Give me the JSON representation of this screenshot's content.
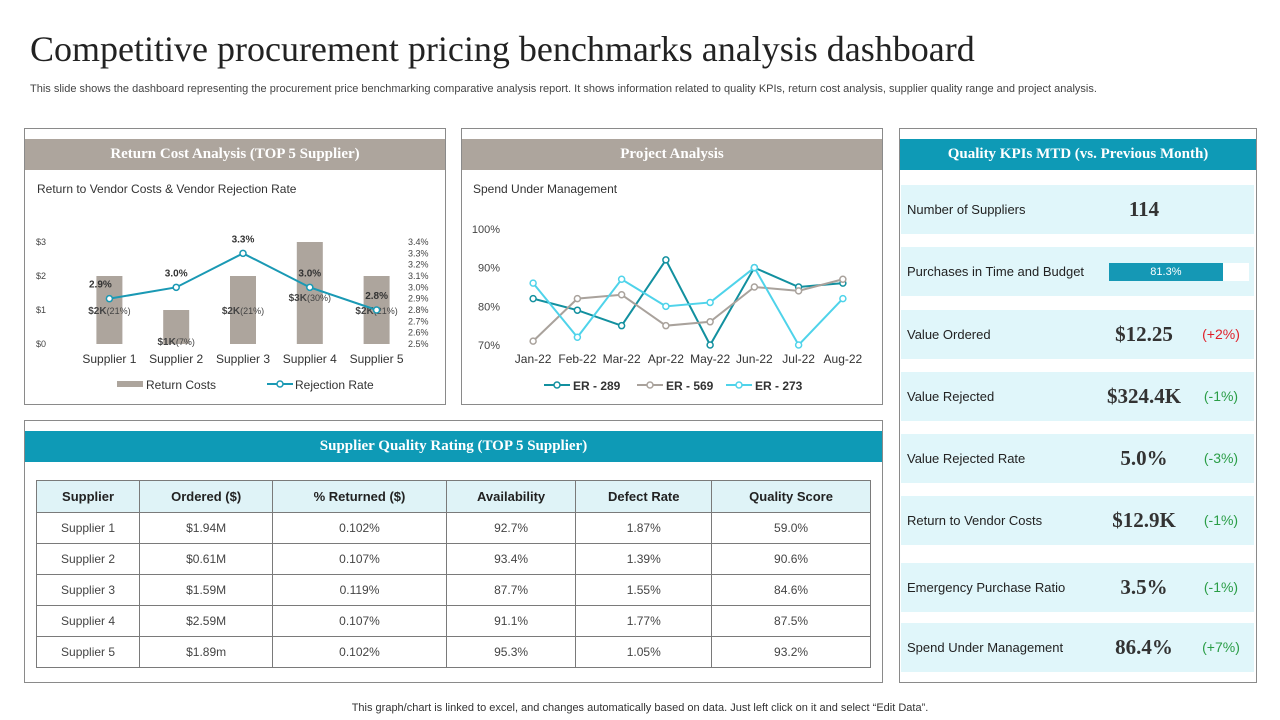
{
  "page": {
    "title": "Competitive procurement pricing benchmarks analysis dashboard",
    "subtitle": "This slide shows the dashboard representing the procurement price benchmarking comparative analysis report. It shows information related to quality KPIs, return cost analysis, supplier quality range and project analysis.",
    "footer": "This graph/chart is linked to excel,  and changes automatically based on data. Just left click on it and select “Edit Data”."
  },
  "return_panel": {
    "header": "Return Cost Analysis (TOP 5 Supplier)",
    "chart_title": "Return to Vendor Costs & Vendor Rejection Rate"
  },
  "project_panel": {
    "header": "Project Analysis",
    "chart_title": "Spend Under Management"
  },
  "quality_panel": {
    "header": "Supplier Quality Rating (TOP 5 Supplier)",
    "columns": [
      "Supplier",
      "Ordered ($)",
      "% Returned ($)",
      "Availability",
      "Defect Rate",
      "Quality Score"
    ],
    "rows": [
      [
        "Supplier 1",
        "$1.94M",
        "0.102%",
        "92.7%",
        "1.87%",
        "59.0%"
      ],
      [
        "Supplier 2",
        "$0.61M",
        "0.107%",
        "93.4%",
        "1.39%",
        "90.6%"
      ],
      [
        "Supplier 3",
        "$1.59M",
        "0.119%",
        "87.7%",
        "1.55%",
        "84.6%"
      ],
      [
        "Supplier 4",
        "$2.59M",
        "0.107%",
        "91.1%",
        "1.77%",
        "87.5%"
      ],
      [
        "Supplier 5",
        "$1.89m",
        "0.102%",
        "95.3%",
        "1.05%",
        "93.2%"
      ]
    ]
  },
  "kpi_panel": {
    "header": "Quality KPIs MTD (vs. Previous Month)",
    "items": [
      {
        "label": "Number of Suppliers",
        "value": "114",
        "change": ""
      },
      {
        "label": "Purchases in Time and Budget",
        "bar_text": "81.3%",
        "bar_fraction": 0.813
      },
      {
        "label": "Value Ordered",
        "value": "$12.25",
        "change": "(+2%)",
        "trend": "neg"
      },
      {
        "label": "Value Rejected",
        "value": "$324.4K",
        "change": "(-1%)",
        "trend": "pos"
      },
      {
        "label": "Value Rejected Rate",
        "value": "5.0%",
        "change": "(-3%)",
        "trend": "pos"
      },
      {
        "label": "Return to Vendor Costs",
        "value": "$12.9K",
        "change": "(-1%)",
        "trend": "pos"
      },
      {
        "label": "Emergency Purchase Ratio",
        "value": "3.5%",
        "change": "(-1%)",
        "trend": "pos"
      },
      {
        "label": "Spend Under Management",
        "value": "86.4%",
        "change": "(+7%)",
        "trend": "pos"
      }
    ]
  },
  "colors": {
    "gray_header": "#ada59d",
    "teal_header": "#0e9ab6",
    "bar": "#ada59d",
    "rejection_line": "#1a99b4",
    "er289": "#12909f",
    "er569": "#a9a29c",
    "er273": "#4fd3ea"
  },
  "chart_data": [
    {
      "type": "bar",
      "title": "Return to Vendor Costs & Vendor Rejection Rate",
      "categories": [
        "Supplier 1",
        "Supplier 2",
        "Supplier 3",
        "Supplier 4",
        "Supplier 5"
      ],
      "y_ticks": [
        "$0",
        "$1",
        "$2",
        "$3"
      ],
      "ylim": [
        0,
        3
      ],
      "y2_ticks": [
        "2.5%",
        "2.6%",
        "2.7%",
        "2.8%",
        "2.9%",
        "3.0%",
        "3.1%",
        "3.2%",
        "3.3%",
        "3.4%"
      ],
      "y2lim": [
        2.5,
        3.4
      ],
      "series": [
        {
          "name": "Return Costs",
          "type": "bar",
          "values": [
            2,
            1,
            2,
            3,
            2
          ],
          "labels": [
            "$2K",
            "$1K",
            "$2K",
            "$3K",
            "$2K"
          ],
          "label_suffix": [
            "(21%)",
            "(7%)",
            "(21%)",
            "(30%)",
            "(21%)"
          ]
        },
        {
          "name": "Rejection Rate",
          "type": "line",
          "values": [
            2.9,
            3.0,
            3.3,
            3.0,
            2.8
          ],
          "labels": [
            "2.9%",
            "3.0%",
            "3.3%",
            "3.0%",
            "2.8%"
          ]
        }
      ],
      "legend": "bottom"
    },
    {
      "type": "line",
      "title": "Spend Under Management",
      "categories": [
        "Jan-22",
        "Feb-22",
        "Mar-22",
        "Apr-22",
        "May-22",
        "Jun-22",
        "Jul-22",
        "Aug-22"
      ],
      "y_ticks": [
        "70%",
        "80%",
        "90%",
        "100%"
      ],
      "ylim": [
        70,
        100
      ],
      "series": [
        {
          "name": "ER - 289",
          "values": [
            82,
            79,
            75,
            92,
            70,
            90,
            85,
            86
          ]
        },
        {
          "name": "ER - 569",
          "values": [
            71,
            82,
            83,
            75,
            76,
            85,
            84,
            87
          ]
        },
        {
          "name": "ER - 273",
          "values": [
            86,
            72,
            87,
            80,
            81,
            90,
            70,
            82
          ]
        }
      ],
      "legend": "bottom"
    }
  ]
}
